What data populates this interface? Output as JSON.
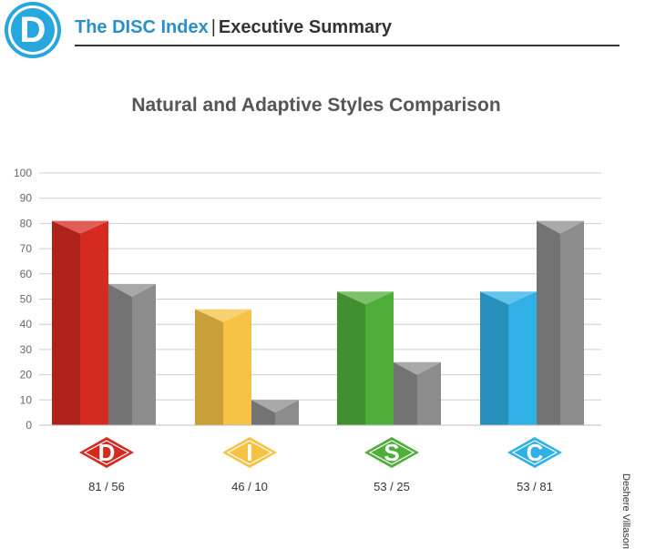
{
  "header": {
    "logo_letter": "D",
    "brand": "The DISC Index",
    "separator": "|",
    "section": "Executive Summary"
  },
  "side_label": "Deshere Villason",
  "chart_data": {
    "type": "bar",
    "title": "Natural and Adaptive Styles Comparison",
    "ylim": [
      0,
      100
    ],
    "yticks": [
      "0",
      "10",
      "20",
      "30",
      "40",
      "50",
      "60",
      "70",
      "80",
      "90",
      "100"
    ],
    "grid": true,
    "categories": [
      "D",
      "I",
      "S",
      "C"
    ],
    "category_labels": [
      "81 / 56",
      "46 / 10",
      "53 / 25",
      "53 / 81"
    ],
    "series": [
      {
        "values": [
          81,
          46,
          53,
          53
        ]
      },
      {
        "values": [
          56,
          10,
          25,
          81
        ]
      }
    ],
    "colors": {
      "natural": [
        "#d42a20",
        "#f5c243",
        "#4fae3a",
        "#2fb0e6"
      ],
      "adaptive": "#8c8c8c"
    }
  }
}
